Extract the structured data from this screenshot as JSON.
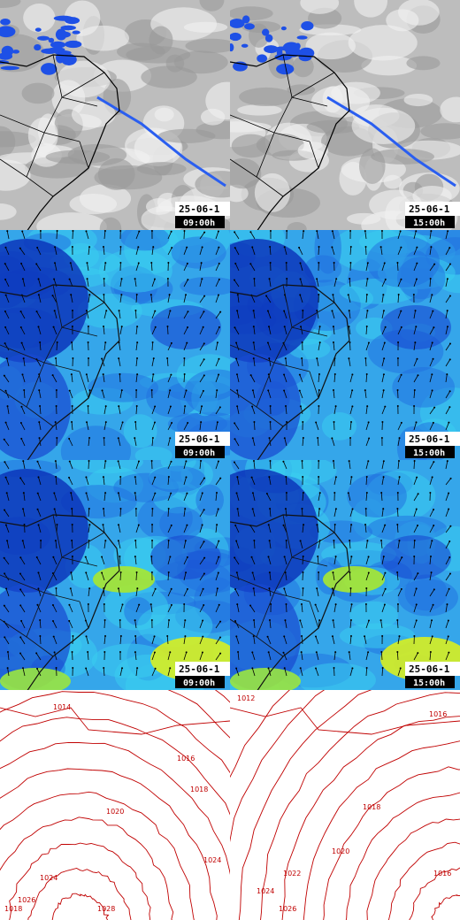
{
  "panels": [
    {
      "date": "25-06-1",
      "time": "09:00h"
    },
    {
      "date": "25-06-1",
      "time": "15:00h"
    },
    {
      "date": "25-06-1",
      "time": "09:00h"
    },
    {
      "date": "25-06-1",
      "time": "15:00h"
    },
    {
      "date": "25-06-1",
      "time": "09:00h"
    },
    {
      "date": "25-06-1",
      "time": "15:00h"
    }
  ],
  "pressure_panels": [
    {
      "labels": [
        "1014",
        "1016",
        "1018",
        "1020",
        "1024",
        "1026",
        "1028",
        "1024",
        "1018"
      ]
    },
    {
      "labels": [
        "1012",
        "1016",
        "1018",
        "1020",
        "1022",
        "1024",
        "1026",
        "1016"
      ]
    }
  ]
}
